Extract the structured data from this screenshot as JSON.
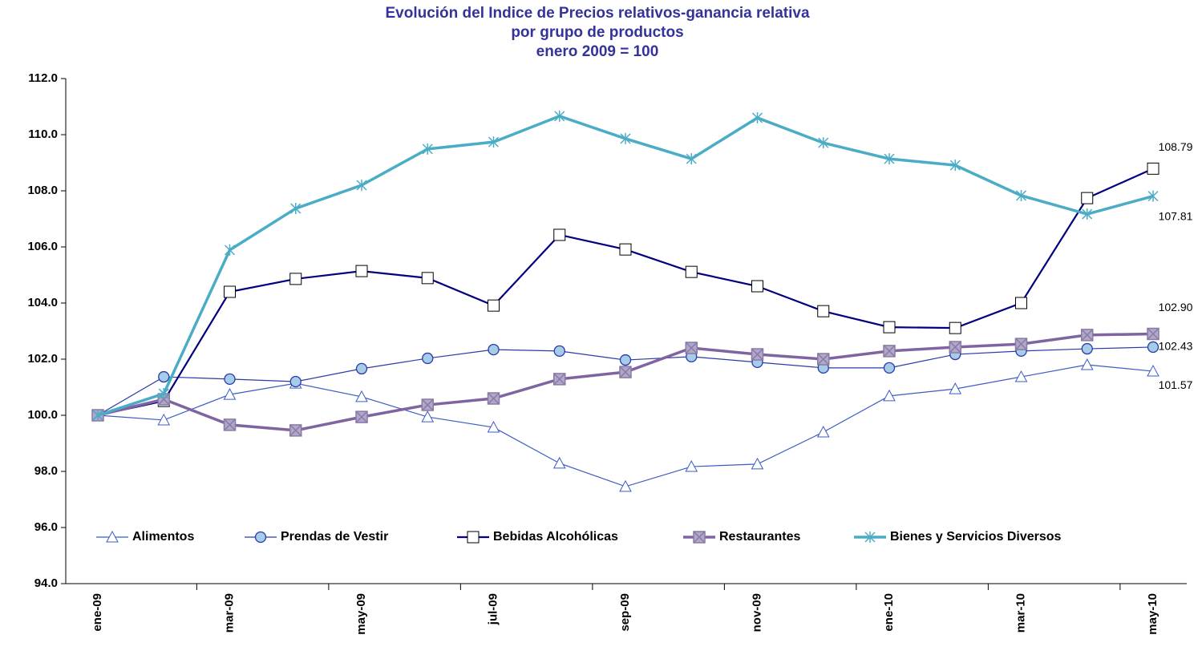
{
  "chart_data": {
    "type": "line",
    "title": [
      "Evolución del Indice de Precios relativos-ganancia relativa",
      "por grupo de productos",
      "enero 2009 = 100"
    ],
    "categories": [
      "ene-09",
      null,
      "mar-09",
      null,
      "may-09",
      null,
      "jul-09",
      null,
      "sep-09",
      null,
      "nov-09",
      null,
      "ene-10",
      null,
      "mar-10",
      null,
      "may-10"
    ],
    "ylim": [
      94,
      112
    ],
    "yticks": [
      {
        "value": 94,
        "label": "94.0"
      },
      {
        "value": 96,
        "label": "96.0"
      },
      {
        "value": 98,
        "label": "98.0"
      },
      {
        "value": 100,
        "label": "100.0"
      },
      {
        "value": 102,
        "label": "102.0"
      },
      {
        "value": 104,
        "label": "104.0"
      },
      {
        "value": 106,
        "label": "106.0"
      },
      {
        "value": 108,
        "label": "108.0"
      },
      {
        "value": 110,
        "label": "110.0"
      },
      {
        "value": 112,
        "label": "112.0"
      }
    ],
    "grid": false,
    "legend": "bottom",
    "series": [
      {
        "name": "Alimentos",
        "color": "#3a5cc4",
        "marker": "triangle",
        "values": [
          100,
          99.83,
          100.74,
          101.14,
          100.66,
          99.94,
          99.57,
          98.29,
          97.46,
          98.17,
          98.26,
          99.4,
          100.69,
          100.94,
          101.37,
          101.8,
          101.57
        ],
        "value_labels": [
          null,
          null,
          null,
          null,
          null,
          null,
          null,
          null,
          null,
          null,
          null,
          null,
          null,
          null,
          null,
          null,
          "101.57"
        ]
      },
      {
        "name": "Prendas de Vestir",
        "color": "#2b3aa8",
        "marker": "circle",
        "values": [
          100,
          101.37,
          101.29,
          101.2,
          101.66,
          102.03,
          102.34,
          102.29,
          101.97,
          102.09,
          101.89,
          101.69,
          101.69,
          102.17,
          102.29,
          102.37,
          102.43
        ],
        "value_labels": [
          null,
          null,
          null,
          null,
          null,
          null,
          null,
          null,
          null,
          null,
          null,
          null,
          null,
          null,
          null,
          null,
          "102.43"
        ]
      },
      {
        "name": "Bebidas Alcohólicas",
        "color": "#000080",
        "marker": "square",
        "values": [
          100,
          100.51,
          104.4,
          104.86,
          105.14,
          104.89,
          103.91,
          106.43,
          105.91,
          105.11,
          104.6,
          103.71,
          103.14,
          103.11,
          104.0,
          107.74,
          108.79
        ],
        "value_labels": [
          null,
          null,
          null,
          null,
          null,
          null,
          null,
          null,
          null,
          null,
          null,
          null,
          null,
          null,
          null,
          null,
          "108.79"
        ]
      },
      {
        "name": "Restaurantes",
        "color": "#8064a2",
        "marker": "xsquare",
        "values": [
          100,
          100.57,
          99.66,
          99.46,
          99.94,
          100.37,
          100.6,
          101.29,
          101.54,
          102.4,
          102.17,
          102.0,
          102.29,
          102.43,
          102.54,
          102.86,
          102.9
        ],
        "value_labels": [
          null,
          null,
          null,
          null,
          null,
          null,
          null,
          null,
          null,
          null,
          null,
          null,
          null,
          null,
          null,
          null,
          "102.90"
        ]
      },
      {
        "name": "Bienes y Servicios Diversos",
        "color": "#4bacc6",
        "marker": "star",
        "values": [
          100,
          100.77,
          105.89,
          107.37,
          108.2,
          109.49,
          109.74,
          110.66,
          109.86,
          109.14,
          110.6,
          109.71,
          109.14,
          108.91,
          107.83,
          107.17,
          107.81
        ],
        "value_labels": [
          null,
          null,
          null,
          null,
          null,
          null,
          null,
          null,
          null,
          null,
          null,
          null,
          null,
          null,
          null,
          null,
          "107.81"
        ]
      }
    ]
  }
}
